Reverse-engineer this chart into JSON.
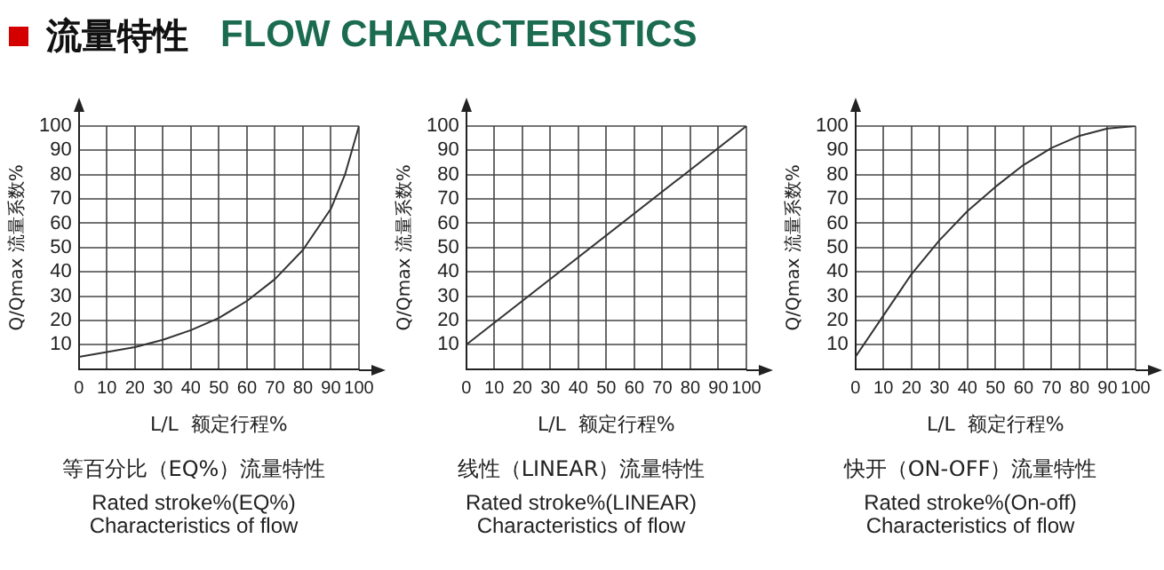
{
  "chart_data": [
    {
      "type": "other",
      "title": "流量特性",
      "subtitle": "FLOW CHARACTERISTICS"
    },
    {
      "type": "line",
      "title": "等百分比（EQ%）流量特性",
      "subtitle": "Rated stroke%(EQ%)\nCharacteristics of flow",
      "xlabel": "L/L  额定行程%",
      "ylabel": "Q/Qmax 流量系数%",
      "series": [
        {
          "color": "#333333",
          "x": [
            0,
            10,
            20,
            30,
            40,
            50,
            60,
            70,
            80,
            90,
            95,
            100
          ],
          "values": [
            5,
            7,
            9,
            12,
            16,
            21,
            28,
            37,
            49,
            66,
            80,
            100
          ]
        }
      ],
      "xlim": [
        0,
        100
      ],
      "ylim": [
        0,
        100
      ],
      "xticks": [
        0,
        10,
        20,
        30,
        40,
        50,
        60,
        70,
        80,
        90,
        100
      ],
      "yticks": [
        10,
        20,
        30,
        40,
        50,
        60,
        70,
        80,
        90,
        100
      ],
      "grid": true,
      "legend": false,
      "marker": "none",
      "line_style": "solid"
    },
    {
      "type": "line",
      "title": "线性（LINEAR）流量特性",
      "subtitle": "Rated stroke%(LINEAR)\nCharacteristics of flow",
      "xlabel": "L/L  额定行程%",
      "ylabel": "Q/Qmax 流量系数%",
      "series": [
        {
          "color": "#333333",
          "x": [
            0,
            100
          ],
          "values": [
            10,
            100
          ]
        }
      ],
      "xlim": [
        0,
        100
      ],
      "ylim": [
        0,
        100
      ],
      "xticks": [
        0,
        10,
        20,
        30,
        40,
        50,
        60,
        70,
        80,
        90,
        100
      ],
      "yticks": [
        10,
        20,
        30,
        40,
        50,
        60,
        70,
        80,
        90,
        100
      ],
      "grid": true,
      "legend": false,
      "marker": "none",
      "line_style": "solid"
    },
    {
      "type": "line",
      "title": "快开（ON-OFF）流量特性",
      "subtitle": "Rated stroke%(On-off)\nCharacteristics of flow",
      "xlabel": "L/L  额定行程%",
      "ylabel": "Q/Qmax 流量系数%",
      "series": [
        {
          "color": "#333333",
          "x": [
            0,
            10,
            20,
            30,
            40,
            50,
            60,
            70,
            80,
            90,
            100
          ],
          "values": [
            5,
            22,
            39,
            53,
            65,
            75,
            84,
            91,
            96,
            99,
            100
          ]
        }
      ],
      "xlim": [
        0,
        100
      ],
      "ylim": [
        0,
        100
      ],
      "xticks": [
        0,
        10,
        20,
        30,
        40,
        50,
        60,
        70,
        80,
        90,
        100
      ],
      "yticks": [
        10,
        20,
        30,
        40,
        50,
        60,
        70,
        80,
        90,
        100
      ],
      "grid": true,
      "legend": false,
      "marker": "none",
      "line_style": "solid"
    }
  ]
}
